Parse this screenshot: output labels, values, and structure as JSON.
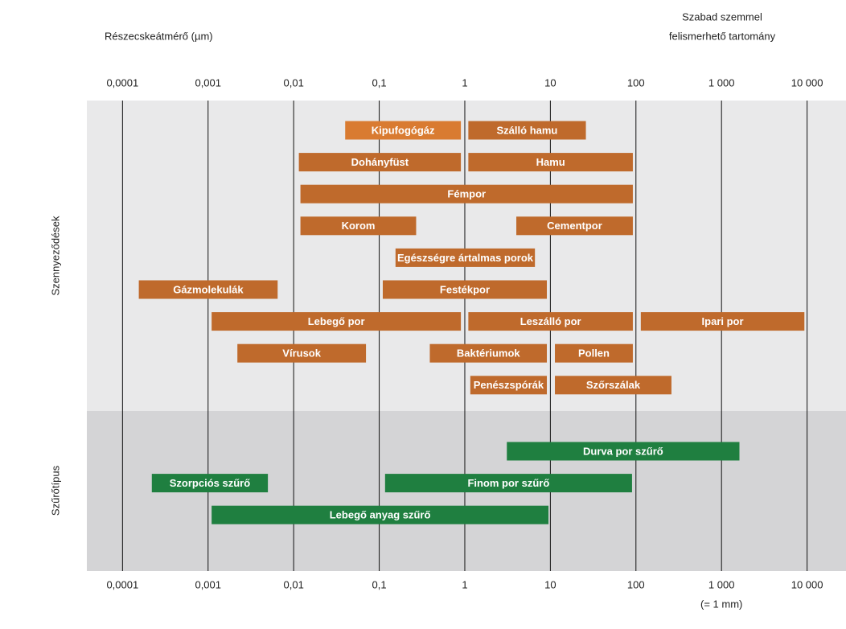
{
  "chart_data": {
    "type": "range",
    "xlabel": "Részecskeátmérő (µm)",
    "annotation": [
      "Szabad szemmel",
      "felismerhető tartomány"
    ],
    "x_scale": "log",
    "xlim": [
      3.83e-05,
      28500
    ],
    "xticks": [
      {
        "value": 0.0001,
        "label": "0,0001"
      },
      {
        "value": 0.001,
        "label": "0,001"
      },
      {
        "value": 0.01,
        "label": "0,01"
      },
      {
        "value": 0.1,
        "label": "0,1"
      },
      1,
      10,
      100,
      {
        "value": 1000,
        "label": "1 000"
      },
      {
        "value": 10000,
        "label": "10 000"
      }
    ],
    "xtick_note": "(= 1 mm)",
    "series": [
      {
        "name": "Szennyeződések",
        "labels": [
          "Kipufogógáz",
          "Szálló hamu",
          "Dohányfüst",
          "Hamu",
          "Fémpor",
          "Korom",
          "Cementpor",
          "Egészségre ártalmas porok",
          "Gázmolekulák",
          "Festékpor",
          "Lebegő por",
          "Leszálló por",
          "Ipari por",
          "Vírusok",
          "Baktériumok",
          "Pollen",
          "Penészspórák",
          "Szőrszálak"
        ],
        "starts": [
          0.04,
          1.1,
          0.0115,
          1.1,
          0.012,
          0.012,
          4,
          0.155,
          0.000155,
          0.11,
          0.0011,
          1.1,
          114,
          0.0022,
          0.39,
          11.3,
          1.16,
          11.3
        ],
        "ends": [
          0.9,
          26,
          0.9,
          92,
          92,
          0.27,
          92,
          6.6,
          0.0065,
          9.1,
          0.9,
          92,
          9300,
          0.07,
          9.1,
          92,
          9.1,
          260
        ],
        "colors": [
          "#d97b31",
          "#bf6a2c",
          "#bf6a2c",
          "#bf6a2c",
          "#bf6a2c",
          "#bf6a2c",
          "#bf6a2c",
          "#bf6a2c",
          "#bf6a2c",
          "#bf6a2c",
          "#bf6a2c",
          "#bf6a2c",
          "#bf6a2c",
          "#bf6a2c",
          "#bf6a2c",
          "#bf6a2c",
          "#bf6a2c",
          "#bf6a2c"
        ]
      },
      {
        "name": "Szűrőtípus",
        "labels": [
          "Durva por szűrő",
          "Szorpciós szűrő",
          "Finom por szűrő",
          "Lebegő anyag szűrő"
        ],
        "starts": [
          3.1,
          0.00022,
          0.117,
          0.0011
        ],
        "ends": [
          1620,
          0.005,
          90,
          9.5
        ],
        "colors": [
          "#1f7f40",
          "#1f7f40",
          "#1f7f40",
          "#1f7f40"
        ]
      }
    ]
  }
}
